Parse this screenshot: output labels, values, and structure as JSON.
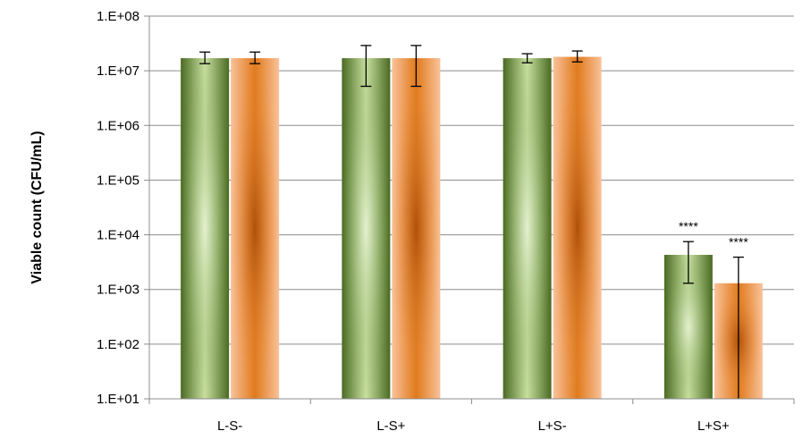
{
  "chart_data": {
    "type": "bar",
    "title": "",
    "xlabel": "",
    "ylabel": "Viable count (CFU/mL)",
    "y_scale": "log",
    "ylim": [
      10,
      100000000
    ],
    "y_ticks": [
      10,
      100,
      1000,
      10000,
      100000,
      1000000,
      10000000,
      100000000
    ],
    "y_tick_labels": [
      "1.E+01",
      "1.E+02",
      "1.E+03",
      "1.E+04",
      "1.E+05",
      "1.E+06",
      "1.E+07",
      "1.E+08"
    ],
    "grid": true,
    "legend": "none",
    "categories": [
      "L-S-",
      "L-S+",
      "L+S-",
      "L+S+"
    ],
    "series": [
      {
        "color": "#6a8c3c",
        "values": [
          17000000,
          17000000,
          17000000,
          4300
        ],
        "error_low": [
          13500000,
          5200000,
          14000000,
          1300
        ],
        "error_high": [
          22000000,
          29000000,
          20500000,
          7500
        ]
      },
      {
        "color": "#f4963f",
        "values": [
          17000000,
          17000000,
          18000000,
          1300
        ],
        "error_low": [
          13500000,
          5200000,
          14500000,
          10
        ],
        "error_high": [
          22000000,
          29000000,
          23000000,
          3900
        ]
      }
    ],
    "annotations": [
      {
        "category": "L+S+",
        "series": 0,
        "text": "****"
      },
      {
        "category": "L+S+",
        "series": 1,
        "text": "****"
      }
    ]
  }
}
